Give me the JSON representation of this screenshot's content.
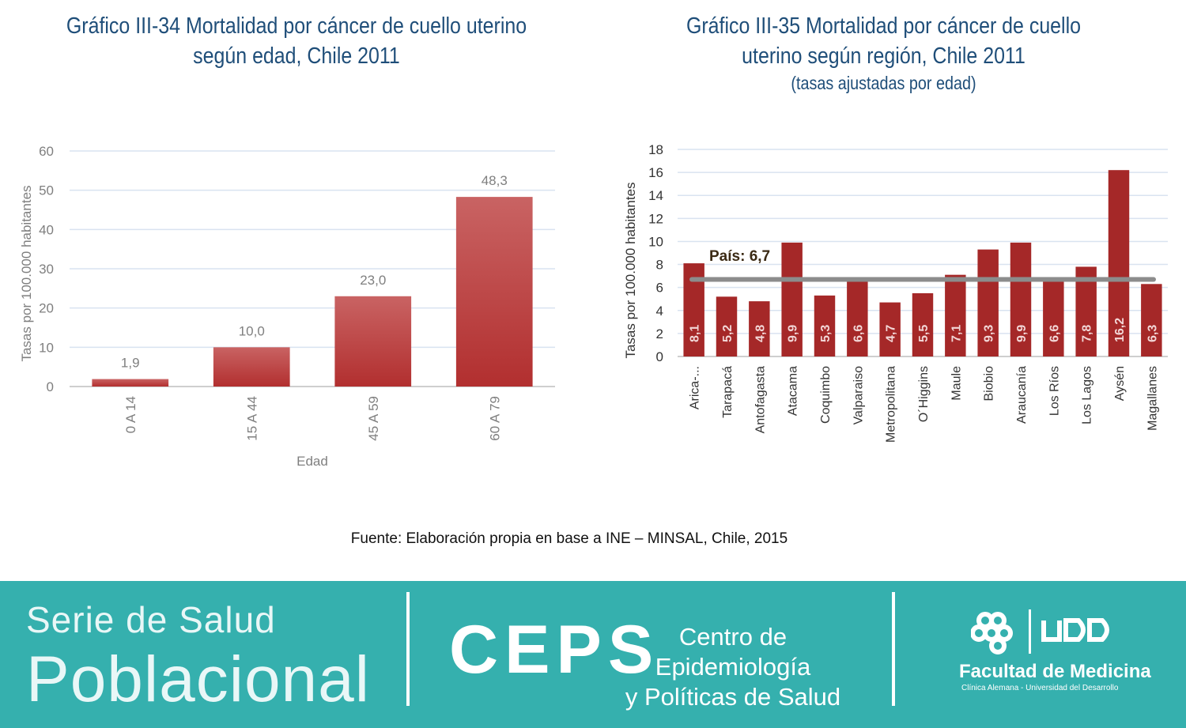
{
  "left_title": {
    "line1": "Gráfico III-34 Mortalidad por cáncer de cuello uterino",
    "line2": "según edad, Chile 2011"
  },
  "right_title": {
    "line1": "Gráfico III-35 Mortalidad por cáncer de cuello",
    "line2": "uterino según región, Chile 2011",
    "subtitle": "(tasas ajustadas por edad)"
  },
  "source": "Fuente: Elaboración propia en base a INE – MINSAL, Chile, 2015",
  "footer": {
    "serie_line1": "Serie de Salud",
    "serie_line2": "Poblacional",
    "ceps": "CEPS",
    "ceps_sub1": "Centro de Epidemiología",
    "ceps_sub2": "y Políticas de Salud",
    "faculty": "Facultad de Medicina",
    "faculty_sub": "Clínica Alemana - Universidad del Desarrollo",
    "udd_logo_icon": "udd-logo-icon"
  },
  "colors": {
    "title": "#1f4e79",
    "bar_top": "#c96363",
    "bar_bottom": "#b22f2f",
    "bar_dark": "#a52828",
    "grid": "#d9e3f0",
    "reference_line": "#8c8c8c",
    "footer_bg": "#35b0ae"
  },
  "chart_data": [
    {
      "type": "bar",
      "categories": [
        "0 A 14",
        "15 A 44",
        "45 A 59",
        "60 A 79"
      ],
      "values": [
        1.9,
        10.0,
        23.0,
        48.3
      ],
      "value_labels": [
        "1,9",
        "10,0",
        "23,0",
        "48,3"
      ],
      "title": "Gráfico III-34 Mortalidad por cáncer de cuello uterino según edad, Chile 2011",
      "xlabel": "Edad",
      "ylabel": "Tasas por 100.000 habitantes",
      "ylim": [
        0,
        60
      ],
      "yticks": [
        0,
        10,
        20,
        30,
        40,
        50,
        60
      ],
      "grid": true
    },
    {
      "type": "bar",
      "categories": [
        "Arica-...",
        "Tarapacá",
        "Antofagasta",
        "Atacama",
        "Coquimbo",
        "Valparaiso",
        "Metropolitana",
        "O´Higgins",
        "Maule",
        "Biobio",
        "Araucanía",
        "Los Ríos",
        "Los Lagos",
        "Aysén",
        "Magallanes"
      ],
      "values": [
        8.1,
        5.2,
        4.8,
        9.9,
        5.3,
        6.6,
        4.7,
        5.5,
        7.1,
        9.3,
        9.9,
        6.6,
        7.8,
        16.2,
        6.3
      ],
      "value_labels": [
        "8,1",
        "5,2",
        "4,8",
        "9,9",
        "5,3",
        "6,6",
        "4,7",
        "5,5",
        "7,1",
        "9,3",
        "9,9",
        "6,6",
        "7,8",
        "16,2",
        "6,3"
      ],
      "title": "Gráfico III-35 Mortalidad por cáncer de cuello uterino según región, Chile 2011",
      "subtitle": "(tasas ajustadas por edad)",
      "xlabel": "",
      "ylabel": "Tasas por 100.000 habitantes",
      "ylim": [
        0,
        18
      ],
      "yticks": [
        0,
        2,
        4,
        6,
        8,
        10,
        12,
        14,
        16,
        18
      ],
      "grid": true,
      "reference": {
        "label": "País: 6,7",
        "value": 6.7
      }
    }
  ]
}
